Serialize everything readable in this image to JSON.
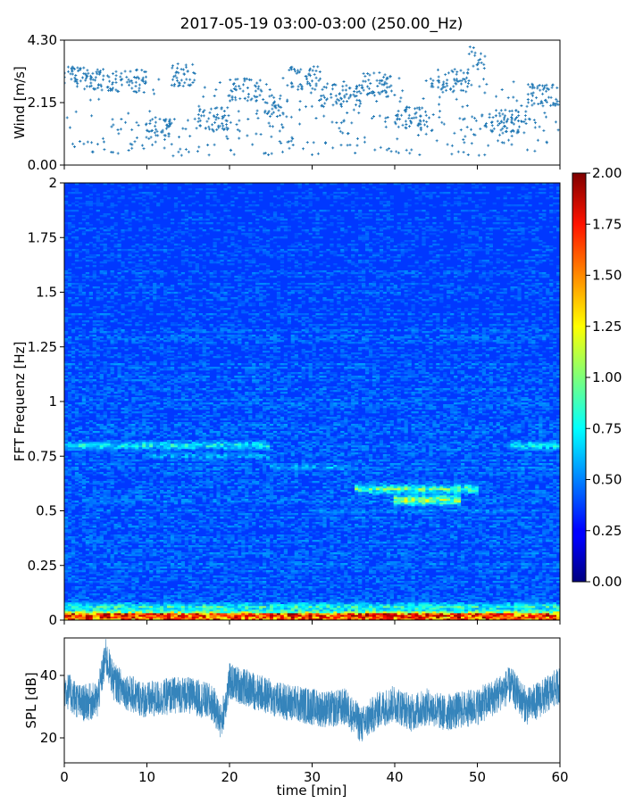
{
  "title": "2017-05-19 03:00-03:00 (250.00_Hz)",
  "chart_data": [
    {
      "type": "scatter",
      "panel": "wind",
      "ylabel": "Wind [m/s]",
      "xlim": [
        0,
        60
      ],
      "ylim": [
        0,
        4.3
      ],
      "yticks": [
        "0.00",
        "2.15",
        "4.30"
      ],
      "marker_color": "#1f77b4",
      "marker": "plus",
      "description_points": "Wind speed points sampled densely across 60 minutes, mostly between 2.5 and 3.5 m/s with frequent dips toward 0.2-1.0 m/s; peak near 4.3 m/s around minute 50.",
      "segments": [
        {
          "x0": 0,
          "x1": 4,
          "y_mean": 3.0
        },
        {
          "x0": 4,
          "x1": 10,
          "y_mean": 2.9
        },
        {
          "x0": 10,
          "x1": 13,
          "y_mean": 1.2
        },
        {
          "x0": 13,
          "x1": 16,
          "y_mean": 3.1
        },
        {
          "x0": 16,
          "x1": 20,
          "y_mean": 1.6
        },
        {
          "x0": 20,
          "x1": 24,
          "y_mean": 2.6
        },
        {
          "x0": 24,
          "x1": 27,
          "y_mean": 2.0
        },
        {
          "x0": 27,
          "x1": 31,
          "y_mean": 3.0
        },
        {
          "x0": 31,
          "x1": 36,
          "y_mean": 2.4
        },
        {
          "x0": 36,
          "x1": 40,
          "y_mean": 2.8
        },
        {
          "x0": 40,
          "x1": 44,
          "y_mean": 1.6
        },
        {
          "x0": 44,
          "x1": 49,
          "y_mean": 2.9
        },
        {
          "x0": 49,
          "x1": 51,
          "y_mean": 3.7
        },
        {
          "x0": 51,
          "x1": 56,
          "y_mean": 1.5
        },
        {
          "x0": 56,
          "x1": 60,
          "y_mean": 2.4
        }
      ]
    },
    {
      "type": "heatmap",
      "panel": "spectrogram",
      "ylabel": "FFT Frequenz [Hz]",
      "xlim": [
        0,
        60
      ],
      "ylim": [
        0,
        2
      ],
      "yticks": [
        "0",
        "0.25",
        "0.5",
        "0.75",
        "1",
        "1.25",
        "1.5",
        "1.75",
        "2"
      ],
      "colormap": "jet",
      "colorbar": {
        "vmin": 0,
        "vmax": 2,
        "ticks": [
          "0.00",
          "0.25",
          "0.50",
          "0.75",
          "1.00",
          "1.25",
          "1.50",
          "1.75",
          "2.00"
        ]
      },
      "bands": [
        {
          "f": 0.02,
          "x0": 0,
          "x1": 60,
          "value": 1.8
        },
        {
          "f": 0.06,
          "x0": 0,
          "x1": 60,
          "value": 1.0
        },
        {
          "f": 0.8,
          "x0": 0,
          "x1": 25,
          "value": 0.9
        },
        {
          "f": 0.75,
          "x0": 10,
          "x1": 25,
          "value": 0.7
        },
        {
          "f": 0.7,
          "x0": 25,
          "x1": 35,
          "value": 0.7
        },
        {
          "f": 0.6,
          "x0": 35,
          "x1": 50,
          "value": 1.1
        },
        {
          "f": 0.55,
          "x0": 40,
          "x1": 48,
          "value": 1.3
        },
        {
          "f": 0.8,
          "x0": 54,
          "x1": 60,
          "value": 0.9
        },
        {
          "f": 0.5,
          "x0": 30,
          "x1": 55,
          "value": 0.6
        },
        {
          "f": 0.25,
          "x0": 0,
          "x1": 60,
          "value": 0.45
        }
      ]
    },
    {
      "type": "line",
      "panel": "spl",
      "ylabel": "SPL [dB]",
      "xlabel": "time [min]",
      "xlim": [
        0,
        60
      ],
      "ylim": [
        12,
        52
      ],
      "yticks": [
        "20",
        "40"
      ],
      "xticks": [
        "0",
        "10",
        "20",
        "30",
        "40",
        "50",
        "60"
      ],
      "line_color": "#1f77b4",
      "x": [
        0,
        2,
        4,
        5,
        6,
        8,
        10,
        12,
        14,
        16,
        18,
        19,
        20,
        22,
        24,
        26,
        28,
        30,
        32,
        34,
        36,
        38,
        40,
        42,
        44,
        46,
        48,
        50,
        52,
        54,
        56,
        58,
        60
      ],
      "values": [
        36,
        31,
        32,
        46,
        38,
        34,
        32,
        33,
        34,
        33,
        31,
        25,
        38,
        36,
        34,
        32,
        31,
        30,
        29,
        30,
        24,
        29,
        31,
        28,
        30,
        28,
        29,
        30,
        33,
        37,
        30,
        33,
        37
      ]
    }
  ]
}
